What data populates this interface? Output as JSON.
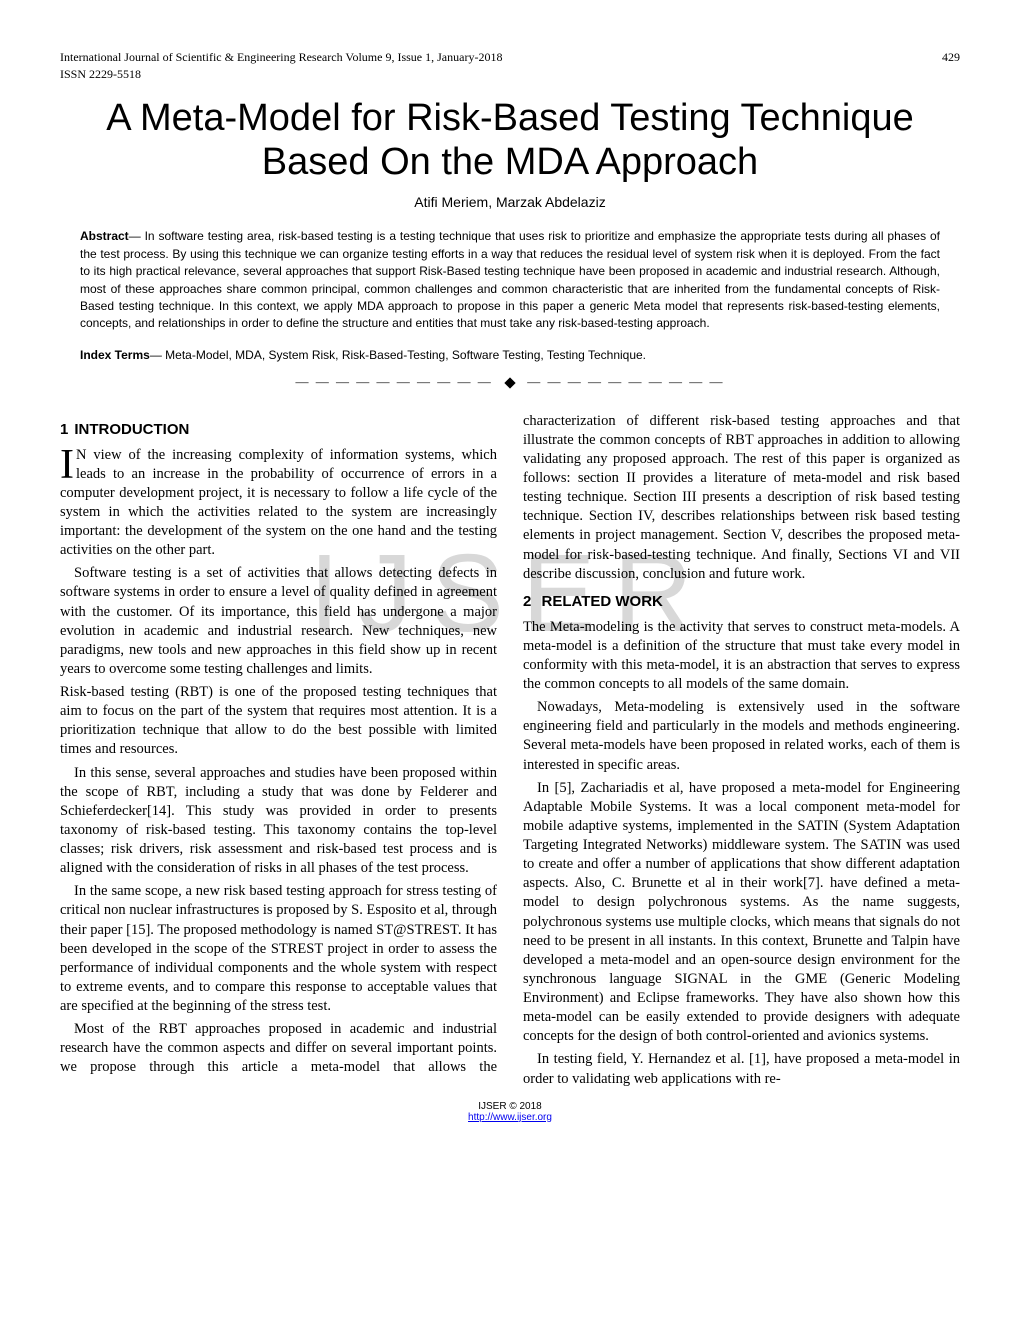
{
  "header": {
    "journal": "International Journal of Scientific & Engineering Research Volume 9, Issue 1, January-2018",
    "page_number": "429",
    "issn": "ISSN 2229-5518"
  },
  "title": "A Meta-Model for Risk-Based Testing Technique Based On the MDA Approach",
  "authors": "Atifi Meriem, Marzak Abdelaziz",
  "abstract": {
    "label": "Abstract",
    "text": "— In software testing area, risk-based testing is a testing technique that uses risk to prioritize and emphasize the appropriate tests during all phases of the test process. By using this technique we can organize testing efforts in a way that reduces the residual level of system risk when it is deployed. From the fact to its high practical relevance, several approaches that support Risk-Based testing technique have been proposed in academic and industrial research. Although, most of these approaches share common principal, common challenges and common characteristic that are inherited from the fundamental concepts of Risk-Based testing technique. In this context, we apply MDA approach to propose in this paper a generic Meta model that represents risk-based-testing elements, concepts, and relationships in order to define the structure and entities that must take any risk-based-testing approach."
  },
  "index_terms": {
    "label": "Index Terms",
    "text": "— Meta-Model, MDA, System Risk, Risk-Based-Testing, Software Testing, Testing Technique."
  },
  "separator": {
    "dashes": "— — — — — — — — — —"
  },
  "watermark": "IJSER",
  "sections": {
    "intro_heading_num": "1",
    "intro_heading_word": "INTRODUCTION",
    "intro_dropcap": "I",
    "intro_p1_cont": "N  view of the increasing complexity of information systems, which leads to an increase in the probability of occurrence of errors in a computer development project, it is necessary to follow a life cycle of the system in which the activities related to the system are increasingly important: the development of the system on the one hand and the testing activities on the other part.",
    "intro_p2": "Software testing is a set of activities that allows detecting defects in software systems in order to ensure a level of quality defined in agreement with the customer. Of its importance, this field has undergone a major evolution in academic and industrial research. New techniques, new paradigms, new tools and new approaches in this field show up in recent years to overcome some testing challenges and limits.",
    "intro_p3": "Risk-based testing (RBT) is one of the proposed testing techniques that aim to focus on the part of the system that requires most attention. It is a prioritization technique that allow to do the best possible with limited times and resources.",
    "intro_p4": "In this sense, several approaches and studies have been proposed within the scope of RBT, including a study that was done by Felderer and Schieferdecker[14]. This study was provided in order to presents taxonomy of risk-based testing. This taxonomy contains the top-level classes; risk drivers, risk assessment and risk-based test process and is aligned with the consideration of risks in all phases of the test process.",
    "intro_p5": "In the same scope, a new risk based testing approach for stress testing of critical non nuclear infrastructures is proposed by S. Esposito et al, through their paper [15]. The proposed methodology is named ST@STREST. It has been developed in the scope of the STREST project in order to assess the performance of individual components and the whole system with respect to extreme events, and to compare this response to acceptable values that are specified at the beginning of the stress test.",
    "intro_p6": "Most of the RBT approaches proposed in academic and industrial research have the common aspects and differ on several important points. we propose through this article a meta-model that allows the characterization of different risk-based testing approaches and that illustrate the common concepts of RBT approaches in addition to allowing validating any proposed approach. The rest of this paper is organized as follows: section II provides a literature of meta-model and risk based testing technique. Section III presents a description of risk based testing technique. Section IV, describes relationships between risk based testing elements in project management. Section V, describes the proposed meta-model for risk-based-testing technique. And finally, Sections VI and VII describe discussion, conclusion and future work.",
    "related_heading_num": "2",
    "related_heading_word": "RELATED WORK",
    "related_p1": "The Meta-modeling is the activity that serves to construct meta-models. A meta-model is a definition of the structure that must take every model in conformity with this meta-model, it is an abstraction that serves to express the common concepts to all models of the same domain.",
    "related_p2": "Nowadays, Meta-modeling is extensively used in the software engineering field and particularly in the models and methods engineering. Several meta-models have been proposed in related works, each of them is interested in specific areas.",
    "related_p3": "In [5], Zachariadis et al, have proposed a meta-model for Engineering Adaptable Mobile Systems. It was a local component meta-model for mobile adaptive systems, implemented in the SATIN (System Adaptation Targeting Integrated Networks) middleware system. The SATIN was used to create and offer a number of applications that show different adaptation aspects. Also,  C. Brunette et al in their work[7]. have defined a meta-model to design polychronous systems. As the name suggests, polychronous systems use multiple clocks, which means that signals do not need to be present in all instants. In this context, Brunette and Talpin have developed a meta-model and an open-source design environment for the synchronous language SIGNAL in the GME (Generic Modeling Environment) and Eclipse frameworks. They have also shown how this meta-model can be easily extended to provide designers with adequate concepts for the design of both control-oriented and avionics systems.",
    "related_p4": "In testing field, Y. Hernandez et al. [1], have proposed a meta-model in order to validating web applications with re-"
  },
  "footer": {
    "copyright": "IJSER © 2018",
    "link": "http://www.ijser.org"
  }
}
